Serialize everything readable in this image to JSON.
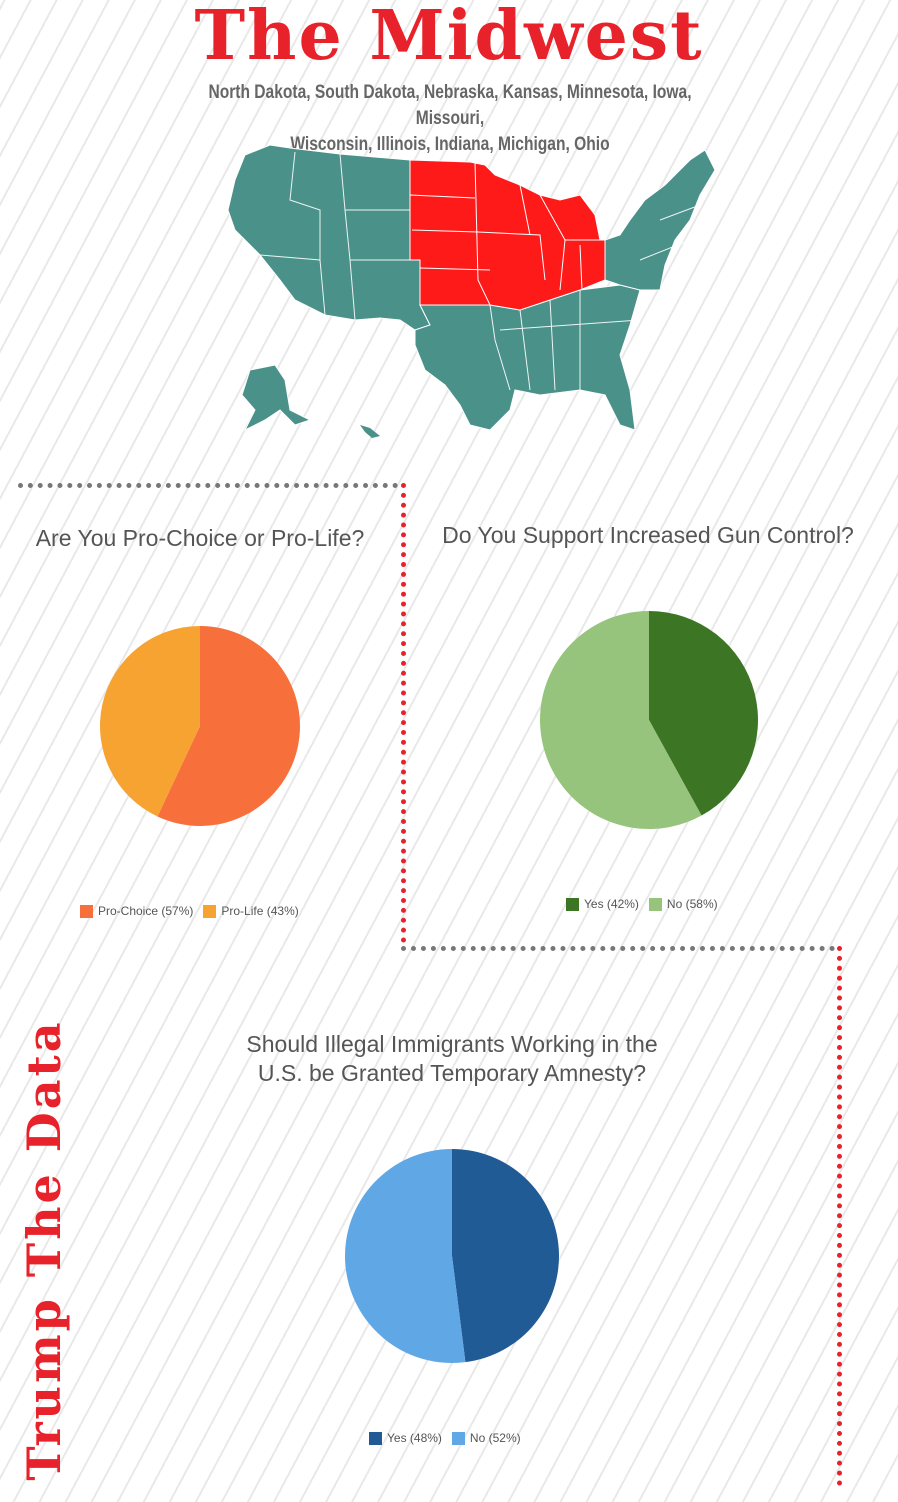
{
  "header": {
    "title": "The Midwest",
    "states_line1": "North Dakota, South Dakota, Nebraska, Kansas, Minnesota, Iowa, Missouri,",
    "states_line2": "Wisconsin, Illinois, Indiana, Michigan, Ohio"
  },
  "map": {
    "highlight_color": "#ff1a1a",
    "base_color": "#4a9189"
  },
  "sidebar_text": "Trump The Data",
  "colors": {
    "divider": "#e8222a",
    "dots_gray": "#777777"
  },
  "chart_data": [
    {
      "type": "pie",
      "title": "Are You Pro-Choice or Pro-Life?",
      "categories": [
        "Pro-Choice",
        "Pro-Life"
      ],
      "values": [
        57,
        43
      ],
      "legend_labels": [
        "Pro-Choice (57%)",
        "Pro-Life (43%)"
      ],
      "colors": [
        "#f7703b",
        "#f7a331"
      ],
      "legend_position": "bottom"
    },
    {
      "type": "pie",
      "title": "Do You Support Increased Gun Control?",
      "categories": [
        "Yes",
        "No"
      ],
      "values": [
        42,
        58
      ],
      "legend_labels": [
        "Yes (42%)",
        "No (58%)"
      ],
      "colors": [
        "#3c7524",
        "#97c47c"
      ],
      "legend_position": "bottom"
    },
    {
      "type": "pie",
      "title_line1": "Should Illegal Immigrants Working in the",
      "title_line2": "U.S. be Granted Temporary Amnesty?",
      "categories": [
        "Yes",
        "No"
      ],
      "values": [
        48,
        52
      ],
      "legend_labels": [
        "Yes (48%)",
        "No (52%)"
      ],
      "colors": [
        "#205b95",
        "#60a7e5"
      ],
      "legend_position": "bottom"
    }
  ]
}
